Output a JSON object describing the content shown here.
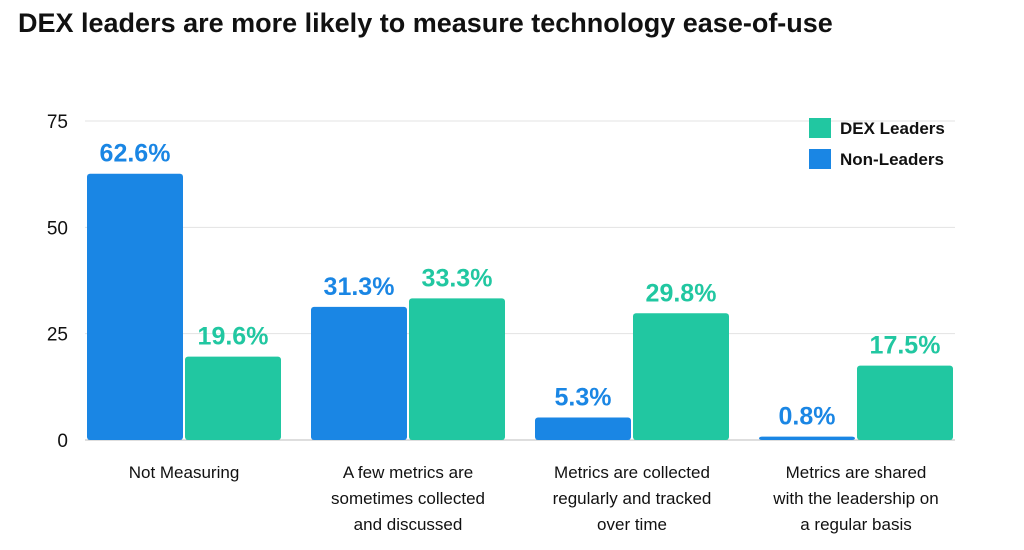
{
  "chart_data": {
    "type": "bar",
    "title": "DEX leaders are more likely to measure technology ease-of-use",
    "xlabel": "",
    "ylabel": "",
    "ylim": [
      0,
      75
    ],
    "yticks": [
      "0",
      "25",
      "50",
      "75"
    ],
    "grid": true,
    "legend_position": "top-right",
    "categories": [
      [
        "Not Measuring"
      ],
      [
        "A few metrics are",
        "sometimes collected",
        "and discussed"
      ],
      [
        "Metrics are collected",
        "regularly and tracked",
        "over time"
      ],
      [
        "Metrics are shared",
        "with the leadership on",
        "a regular basis"
      ]
    ],
    "series": [
      {
        "name": "Non-Leaders",
        "color": "#1a86e4",
        "values": [
          62.6,
          31.3,
          5.3,
          0.8
        ],
        "labels": [
          "62.6%",
          "31.3%",
          "5.3%",
          "0.8%"
        ]
      },
      {
        "name": "DEX Leaders",
        "color": "#21c7a1",
        "values": [
          19.6,
          33.3,
          29.8,
          17.5
        ],
        "labels": [
          "19.6%",
          "33.3%",
          "29.8%",
          "17.5%"
        ]
      }
    ],
    "legend_order": [
      1,
      0
    ]
  }
}
